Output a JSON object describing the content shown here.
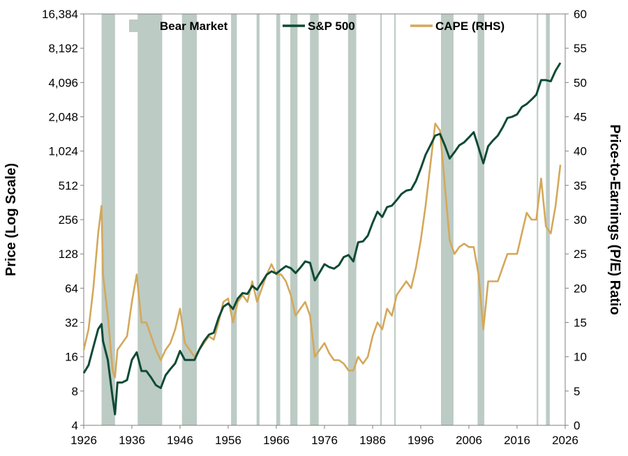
{
  "chart_data": {
    "type": "line",
    "title": "",
    "x_axis": {
      "label": "",
      "range": [
        1926,
        2026
      ],
      "ticks": [
        "1926",
        "1936",
        "1946",
        "1956",
        "1966",
        "1976",
        "1986",
        "1996",
        "2006",
        "2016",
        "2026"
      ]
    },
    "y_left": {
      "label": "Price (Log Scale)",
      "scale": "log2",
      "range": [
        4,
        16384
      ],
      "ticks": [
        "4",
        "8",
        "16",
        "32",
        "64",
        "128",
        "256",
        "512",
        "1,024",
        "2,048",
        "4,096",
        "8,192",
        "16,384"
      ]
    },
    "y_right": {
      "label": "Price-to-Earnings (P/E) Ratio",
      "scale": "linear",
      "range": [
        0,
        60
      ],
      "ticks": [
        "0",
        "5",
        "10",
        "15",
        "20",
        "25",
        "30",
        "35",
        "40",
        "45",
        "50",
        "55",
        "60"
      ]
    },
    "grid": false,
    "legend": {
      "position": "top",
      "entries": [
        {
          "label": "Bear Market",
          "kind": "band",
          "color": "#bccbc4"
        },
        {
          "label": "S&P 500",
          "kind": "line",
          "color": "#0e4a35"
        },
        {
          "label": "CAPE (RHS)",
          "kind": "line",
          "color": "#d4a85a"
        }
      ]
    },
    "bear_markets": [
      [
        1929.7,
        1932.5
      ],
      [
        1937.2,
        1942.3
      ],
      [
        1946.4,
        1949.5
      ],
      [
        1956.6,
        1957.8
      ],
      [
        1961.9,
        1962.5
      ],
      [
        1966.0,
        1966.8
      ],
      [
        1968.9,
        1970.4
      ],
      [
        1973.0,
        1974.8
      ],
      [
        1980.9,
        1982.6
      ],
      [
        1987.6,
        1987.9
      ],
      [
        1990.5,
        1990.8
      ],
      [
        2000.2,
        2002.8
      ],
      [
        2007.8,
        2009.2
      ],
      [
        2020.1,
        2020.3
      ],
      [
        2022.0,
        2022.8
      ]
    ],
    "series": [
      {
        "name": "S&P 500",
        "axis": "left",
        "x": [
          1926,
          1927,
          1928,
          1929,
          1929.7,
          1930,
          1931,
          1932,
          1932.5,
          1933,
          1934,
          1935,
          1936,
          1937,
          1938,
          1939,
          1940,
          1941,
          1942,
          1943,
          1944,
          1945,
          1946,
          1947,
          1948,
          1949,
          1950,
          1951,
          1952,
          1953,
          1954,
          1955,
          1956,
          1957,
          1958,
          1959,
          1960,
          1961,
          1962,
          1963,
          1964,
          1965,
          1966,
          1967,
          1968,
          1969,
          1970,
          1971,
          1972,
          1973,
          1974,
          1975,
          1976,
          1977,
          1978,
          1979,
          1980,
          1981,
          1982,
          1983,
          1984,
          1985,
          1986,
          1987,
          1988,
          1989,
          1990,
          1991,
          1992,
          1993,
          1994,
          1995,
          1996,
          1997,
          1998,
          1999,
          2000,
          2001,
          2002,
          2003,
          2004,
          2005,
          2006,
          2007,
          2008,
          2009,
          2010,
          2011,
          2012,
          2013,
          2014,
          2015,
          2016,
          2017,
          2018,
          2019,
          2020,
          2021,
          2022,
          2023,
          2024,
          2025
        ],
        "values": [
          11.5,
          13.5,
          19.5,
          28,
          31,
          22,
          15,
          7,
          5,
          9.5,
          9.5,
          10,
          15,
          17.5,
          12,
          12,
          10.5,
          9,
          8.5,
          11,
          12.5,
          14,
          18,
          15,
          15,
          15,
          18.5,
          22,
          25,
          26,
          35,
          44,
          47,
          42,
          52,
          58,
          57,
          67,
          62,
          72,
          84,
          90,
          86,
          93,
          100,
          96,
          87,
          97,
          110,
          107,
          75,
          88,
          104,
          98,
          95,
          102,
          120,
          125,
          110,
          162,
          165,
          185,
          240,
          300,
          270,
          330,
          340,
          380,
          430,
          460,
          470,
          560,
          720,
          950,
          1150,
          1400,
          1450,
          1150,
          880,
          1000,
          1150,
          1220,
          1350,
          1500,
          1100,
          800,
          1130,
          1270,
          1400,
          1650,
          2000,
          2050,
          2150,
          2500,
          2650,
          2900,
          3200,
          4300,
          4300,
          4200,
          5200,
          6100
        ]
      },
      {
        "name": "CAPE (RHS)",
        "axis": "right",
        "x": [
          1926,
          1927,
          1928,
          1929,
          1929.7,
          1930,
          1931,
          1932,
          1932.5,
          1933,
          1934,
          1935,
          1936,
          1937,
          1938,
          1939,
          1940,
          1941,
          1942,
          1943,
          1944,
          1945,
          1946,
          1947,
          1948,
          1949,
          1950,
          1951,
          1952,
          1953,
          1954,
          1955,
          1956,
          1957,
          1958,
          1959,
          1960,
          1961,
          1962,
          1963,
          1964,
          1965,
          1966,
          1967,
          1968,
          1969,
          1970,
          1971,
          1972,
          1973,
          1974,
          1975,
          1976,
          1977,
          1978,
          1979,
          1980,
          1981,
          1982,
          1983,
          1984,
          1985,
          1986,
          1987,
          1988,
          1989,
          1990,
          1991,
          1992,
          1993,
          1994,
          1995,
          1996,
          1997,
          1998,
          1999,
          2000,
          2001,
          2002,
          2003,
          2004,
          2005,
          2006,
          2007,
          2008,
          2009,
          2010,
          2011,
          2012,
          2013,
          2014,
          2015,
          2016,
          2017,
          2018,
          2019,
          2020,
          2021,
          2022,
          2023,
          2024,
          2025
        ],
        "values": [
          11,
          14,
          20,
          28,
          32,
          22,
          16,
          8,
          7,
          11,
          12,
          13,
          18,
          22,
          15,
          15,
          13,
          11,
          9.5,
          11,
          12,
          14,
          17,
          12,
          11,
          10,
          11,
          12,
          13,
          12.5,
          15,
          18,
          18.5,
          15,
          18,
          19,
          18,
          21,
          18,
          20,
          22,
          23.5,
          22,
          22,
          21,
          19,
          16,
          17,
          18,
          16,
          10,
          11,
          12,
          10.5,
          9.5,
          9.5,
          9,
          8,
          8,
          10,
          9,
          10,
          13,
          15,
          14,
          17,
          16,
          19,
          20,
          21,
          20,
          23,
          27,
          32,
          38,
          44,
          43,
          35,
          27,
          25,
          26,
          26.5,
          26,
          26,
          22,
          14,
          21,
          21,
          21,
          23,
          25,
          25,
          25,
          28,
          31,
          30,
          30,
          36,
          29,
          28,
          32,
          38
        ]
      }
    ]
  }
}
